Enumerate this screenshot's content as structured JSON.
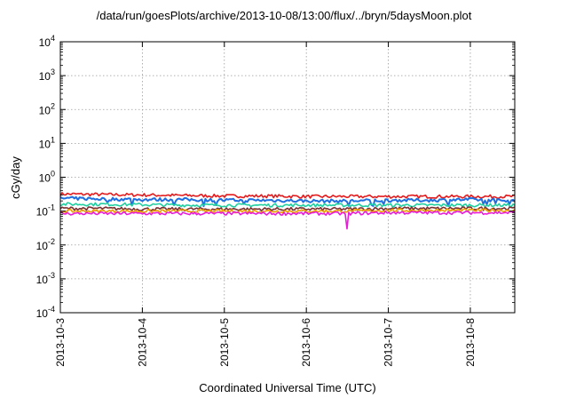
{
  "chart_data": {
    "type": "line",
    "title": "/data/run/goesPlots/archive/2013-10-08/13:00/flux/../bryn/5daysMoon.plot",
    "xlabel": "Coordinated Universal Time (UTC)",
    "ylabel": "cGy/day",
    "yscale": "log",
    "ylim": [
      0.0001,
      10000
    ],
    "xlim": [
      "2013-10-03",
      "2013-10-08 13:00"
    ],
    "x_ticks": [
      "2013-10-3",
      "2013-10-4",
      "2013-10-5",
      "2013-10-6",
      "2013-10-7",
      "2013-10-8"
    ],
    "y_ticks": [
      {
        "value": 0.0001,
        "base": "10",
        "exp": "-4"
      },
      {
        "value": 0.001,
        "base": "10",
        "exp": "-3"
      },
      {
        "value": 0.01,
        "base": "10",
        "exp": "-2"
      },
      {
        "value": 0.1,
        "base": "10",
        "exp": "-1"
      },
      {
        "value": 1,
        "base": "10",
        "exp": "0"
      },
      {
        "value": 10,
        "base": "10",
        "exp": "1"
      },
      {
        "value": 100,
        "base": "10",
        "exp": "2"
      },
      {
        "value": 1000,
        "base": "10",
        "exp": "3"
      },
      {
        "value": 10000,
        "base": "10",
        "exp": "4"
      }
    ],
    "grid": true,
    "x": [
      "2013-10-03 00:00",
      "2013-10-03 12:00",
      "2013-10-04 00:00",
      "2013-10-04 12:00",
      "2013-10-05 00:00",
      "2013-10-05 12:00",
      "2013-10-06 00:00",
      "2013-10-06 12:00",
      "2013-10-07 00:00",
      "2013-10-07 12:00",
      "2013-10-08 00:00",
      "2013-10-08 12:00"
    ],
    "series": [
      {
        "color": "#e41a1c",
        "values": [
          0.32,
          0.31,
          0.3,
          0.29,
          0.28,
          0.28,
          0.27,
          0.27,
          0.27,
          0.27,
          0.27,
          0.27
        ]
      },
      {
        "color": "#1f6fe0",
        "values": [
          0.24,
          0.23,
          0.22,
          0.22,
          0.21,
          0.21,
          0.2,
          0.2,
          0.21,
          0.21,
          0.22,
          0.21
        ]
      },
      {
        "color": "#1fcf9f",
        "values": [
          0.16,
          0.16,
          0.155,
          0.15,
          0.15,
          0.15,
          0.15,
          0.15,
          0.15,
          0.15,
          0.15,
          0.15
        ]
      },
      {
        "color": "#7a3030",
        "values": [
          0.12,
          0.12,
          0.115,
          0.115,
          0.115,
          0.115,
          0.115,
          0.115,
          0.12,
          0.12,
          0.12,
          0.12
        ]
      },
      {
        "color": "#f0a000",
        "values": [
          0.1,
          0.1,
          0.1,
          0.1,
          0.1,
          0.1,
          0.1,
          0.1,
          0.105,
          0.105,
          0.105,
          0.105
        ]
      },
      {
        "color": "#e81cd8",
        "values": [
          0.085,
          0.085,
          0.085,
          0.085,
          0.085,
          0.085,
          0.085,
          0.085,
          0.09,
          0.09,
          0.09,
          0.09
        ]
      }
    ],
    "dip": {
      "x": "2013-10-06 12:00",
      "y": 0.03
    }
  }
}
